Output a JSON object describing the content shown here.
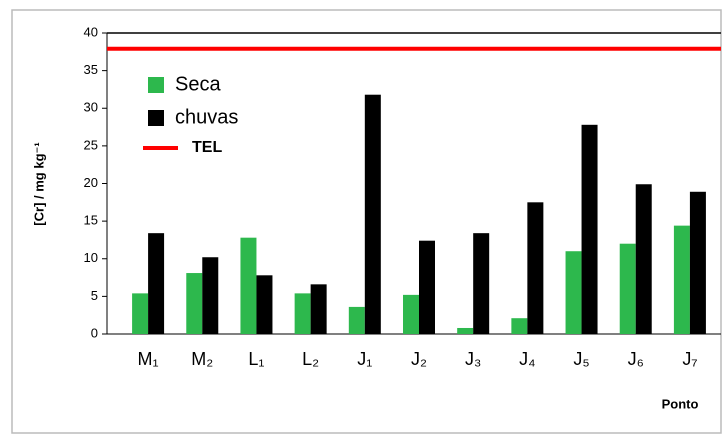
{
  "chart_data": {
    "type": "bar",
    "y_label": "[Cr] / mg kg⁻¹",
    "x_label": "Ponto",
    "categories": [
      "M₁",
      "M₂",
      "L₁",
      "L₂",
      "J₁",
      "J₂",
      "J₃",
      "J₄",
      "J₅",
      "J₆",
      "J₇"
    ],
    "series": [
      {
        "name": "Seca",
        "color": "#2db84d",
        "values": [
          5.4,
          8.1,
          12.8,
          5.4,
          3.6,
          5.2,
          0.8,
          2.1,
          11.0,
          12.0,
          14.4
        ]
      },
      {
        "name": "chuvas",
        "color": "#000000",
        "values": [
          13.4,
          10.2,
          7.8,
          6.6,
          31.8,
          12.4,
          13.4,
          17.5,
          27.8,
          19.9,
          18.9
        ]
      }
    ],
    "reference_lines": [
      {
        "name": "TEL",
        "value": 37.9,
        "color": "#ff0000"
      }
    ],
    "ylim": [
      0,
      40
    ],
    "yticks": [
      0,
      5,
      10,
      15,
      20,
      25,
      30,
      35,
      40
    ]
  }
}
